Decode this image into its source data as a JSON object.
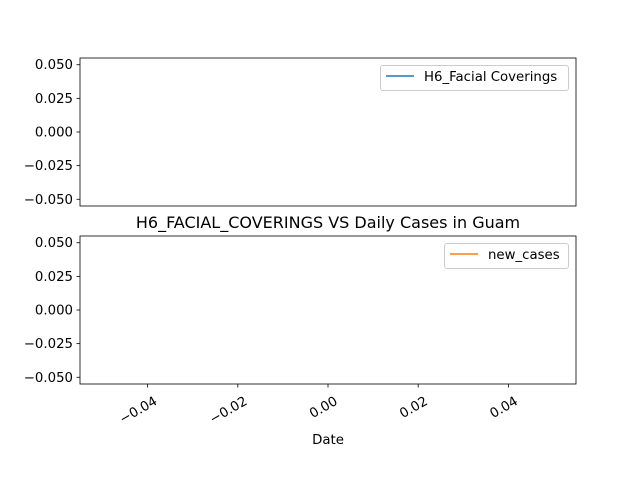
{
  "chart_data": [
    {
      "type": "line",
      "title": "",
      "xlabel": "",
      "ylabel": "",
      "xlim": [
        -0.055,
        0.055
      ],
      "ylim": [
        -0.055,
        0.055
      ],
      "yticks": [
        0.05,
        0.025,
        0.0,
        -0.025,
        -0.05
      ],
      "ytick_labels": [
        "0.050",
        "0.025",
        "0.000",
        "−0.025",
        "−0.050"
      ],
      "grid": false,
      "legend": {
        "placement": "upper right",
        "entries": [
          "H6_Facial Coverings"
        ]
      },
      "series": [
        {
          "name": "H6_Facial Coverings",
          "color": "#1f77b4",
          "x": [],
          "y": []
        }
      ]
    },
    {
      "type": "line",
      "title": "H6_FACIAL_COVERINGS VS Daily Cases in Guam",
      "xlabel": "Date",
      "ylabel": "",
      "xlim": [
        -0.055,
        0.055
      ],
      "ylim": [
        -0.055,
        0.055
      ],
      "xticks": [
        -0.04,
        -0.02,
        0.0,
        0.02,
        0.04
      ],
      "xtick_labels": [
        "−0.04",
        "−0.02",
        "0.00",
        "0.02",
        "0.04"
      ],
      "yticks": [
        0.05,
        0.025,
        0.0,
        -0.025,
        -0.05
      ],
      "ytick_labels": [
        "0.050",
        "0.025",
        "0.000",
        "−0.025",
        "−0.050"
      ],
      "grid": false,
      "legend": {
        "placement": "upper right",
        "entries": [
          "new_cases"
        ]
      },
      "series": [
        {
          "name": "new_cases",
          "color": "#ff7f0e",
          "x": [],
          "y": []
        }
      ]
    }
  ]
}
